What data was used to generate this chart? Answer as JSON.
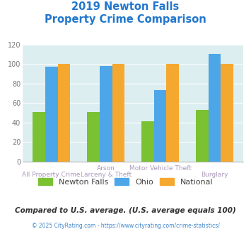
{
  "title_line1": "2019 Newton Falls",
  "title_line2": "Property Crime Comparison",
  "cat_labels_top": [
    "",
    "Arson",
    "Motor Vehicle Theft",
    ""
  ],
  "cat_labels_bottom": [
    "All Property Crime",
    "Larceny & Theft",
    "",
    "Burglary"
  ],
  "newton_falls": [
    51,
    51,
    41,
    53
  ],
  "ohio": [
    97,
    98,
    73,
    110
  ],
  "national": [
    100,
    100,
    100,
    100
  ],
  "colors": {
    "newton_falls": "#7ac231",
    "ohio": "#4da6e8",
    "national": "#f5a830"
  },
  "ylim": [
    0,
    120
  ],
  "yticks": [
    0,
    20,
    40,
    60,
    80,
    100,
    120
  ],
  "title_color": "#2277cc",
  "subtitle_note": "Compared to U.S. average. (U.S. average equals 100)",
  "footer": "© 2025 CityRating.com - https://www.cityrating.com/crime-statistics/",
  "plot_bg_color": "#ddeef0",
  "label_color": "#aa99bb",
  "legend_label_color": "#444444",
  "subtitle_color": "#333333",
  "footer_color": "#4488cc"
}
